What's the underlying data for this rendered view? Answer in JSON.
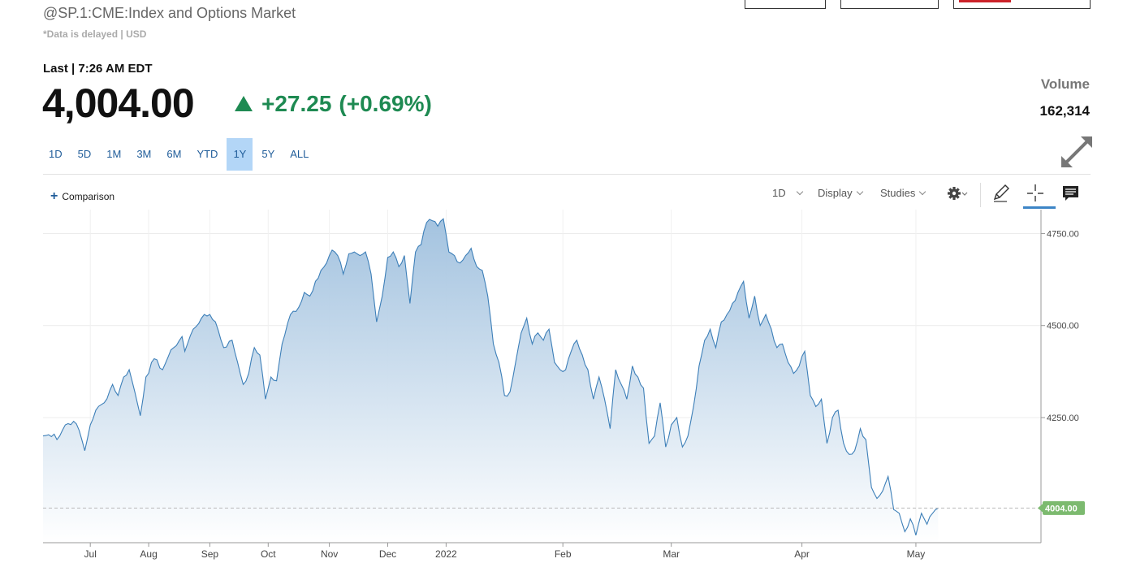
{
  "header": {
    "title": "@SP.1:CME:Index and Options Market",
    "delayed_note": "*Data is delayed | USD",
    "last_label": "Last | 7:26 AM EDT",
    "last_price": "4,004.00",
    "change": "+27.25",
    "change_pct": "(+0.69%)",
    "volume_label": "Volume",
    "volume_value": "162,314"
  },
  "ranges": [
    "1D",
    "5D",
    "1M",
    "3M",
    "6M",
    "YTD",
    "1Y",
    "5Y",
    "ALL"
  ],
  "active_range": "1Y",
  "toolbar": {
    "comparison": "Comparison",
    "interval": "1D",
    "display": "Display",
    "studies": "Studies"
  },
  "colors": {
    "line": "#3d7fb8",
    "area_top": "#9fc0de",
    "area_bottom": "#ffffff",
    "positive": "#1e8a52",
    "price_tag": "#7cba6f",
    "active_range": "#b3d6f7"
  },
  "icons": [
    "expand-icon",
    "settings-gear-icon",
    "pencil-icon",
    "crosshair-icon",
    "comment-icon"
  ],
  "chart_data": {
    "type": "area",
    "y_axis": {
      "ticks": [
        4250,
        4500,
        4750
      ],
      "tick_labels": [
        "4250.00",
        "4500.00",
        "4750.00"
      ],
      "ylim": [
        3910,
        4815
      ],
      "position": "right"
    },
    "x_axis": {
      "ticks": [
        "Jul",
        "Aug",
        "Sep",
        "Oct",
        "Nov",
        "Dec",
        "2022",
        "Feb",
        "Mar",
        "Apr",
        "May"
      ],
      "tick_index": [
        17,
        38,
        60,
        81,
        103,
        124,
        145,
        187,
        226,
        273,
        314
      ],
      "n_points": 360
    },
    "last_value": 4004,
    "last_value_label": "4004.00",
    "grid": true,
    "anchors": [
      [
        0,
        4200
      ],
      [
        4,
        4205
      ],
      [
        5,
        4190
      ],
      [
        8,
        4230
      ],
      [
        11,
        4240
      ],
      [
        13,
        4215
      ],
      [
        15,
        4160
      ],
      [
        17,
        4230
      ],
      [
        19,
        4270
      ],
      [
        22,
        4290
      ],
      [
        25,
        4340
      ],
      [
        27,
        4310
      ],
      [
        29,
        4360
      ],
      [
        31,
        4380
      ],
      [
        33,
        4320
      ],
      [
        35,
        4255
      ],
      [
        37,
        4360
      ],
      [
        40,
        4410
      ],
      [
        43,
        4380
      ],
      [
        45,
        4415
      ],
      [
        47,
        4440
      ],
      [
        50,
        4470
      ],
      [
        51,
        4430
      ],
      [
        54,
        4490
      ],
      [
        57,
        4520
      ],
      [
        60,
        4530
      ],
      [
        62,
        4510
      ],
      [
        65,
        4440
      ],
      [
        68,
        4460
      ],
      [
        70,
        4400
      ],
      [
        72,
        4340
      ],
      [
        74,
        4370
      ],
      [
        76,
        4440
      ],
      [
        78,
        4420
      ],
      [
        80,
        4300
      ],
      [
        82,
        4360
      ],
      [
        84,
        4350
      ],
      [
        86,
        4450
      ],
      [
        89,
        4530
      ],
      [
        92,
        4550
      ],
      [
        94,
        4590
      ],
      [
        96,
        4580
      ],
      [
        98,
        4620
      ],
      [
        100,
        4650
      ],
      [
        102,
        4670
      ],
      [
        104,
        4705
      ],
      [
        106,
        4690
      ],
      [
        108,
        4640
      ],
      [
        110,
        4695
      ],
      [
        112,
        4700
      ],
      [
        114,
        4690
      ],
      [
        116,
        4700
      ],
      [
        118,
        4640
      ],
      [
        120,
        4510
      ],
      [
        122,
        4580
      ],
      [
        124,
        4685
      ],
      [
        126,
        4700
      ],
      [
        128,
        4660
      ],
      [
        130,
        4690
      ],
      [
        132,
        4560
      ],
      [
        134,
        4700
      ],
      [
        136,
        4720
      ],
      [
        138,
        4780
      ],
      [
        140,
        4785
      ],
      [
        142,
        4770
      ],
      [
        144,
        4790
      ],
      [
        146,
        4700
      ],
      [
        148,
        4690
      ],
      [
        150,
        4670
      ],
      [
        152,
        4690
      ],
      [
        154,
        4710
      ],
      [
        156,
        4660
      ],
      [
        158,
        4650
      ],
      [
        160,
        4580
      ],
      [
        162,
        4450
      ],
      [
        164,
        4400
      ],
      [
        166,
        4310
      ],
      [
        168,
        4320
      ],
      [
        170,
        4400
      ],
      [
        172,
        4480
      ],
      [
        174,
        4520
      ],
      [
        176,
        4450
      ],
      [
        178,
        4480
      ],
      [
        180,
        4460
      ],
      [
        182,
        4490
      ],
      [
        184,
        4400
      ],
      [
        186,
        4380
      ],
      [
        188,
        4380
      ],
      [
        190,
        4430
      ],
      [
        192,
        4460
      ],
      [
        194,
        4420
      ],
      [
        196,
        4380
      ],
      [
        198,
        4300
      ],
      [
        200,
        4360
      ],
      [
        202,
        4300
      ],
      [
        204,
        4220
      ],
      [
        206,
        4380
      ],
      [
        208,
        4340
      ],
      [
        210,
        4300
      ],
      [
        212,
        4390
      ],
      [
        214,
        4360
      ],
      [
        216,
        4330
      ],
      [
        218,
        4180
      ],
      [
        220,
        4200
      ],
      [
        222,
        4290
      ],
      [
        224,
        4170
      ],
      [
        226,
        4230
      ],
      [
        228,
        4250
      ],
      [
        230,
        4170
      ],
      [
        232,
        4200
      ],
      [
        234,
        4280
      ],
      [
        236,
        4390
      ],
      [
        238,
        4460
      ],
      [
        240,
        4490
      ],
      [
        242,
        4440
      ],
      [
        244,
        4510
      ],
      [
        246,
        4530
      ],
      [
        248,
        4560
      ],
      [
        250,
        4590
      ],
      [
        252,
        4620
      ],
      [
        254,
        4520
      ],
      [
        256,
        4580
      ],
      [
        258,
        4500
      ],
      [
        260,
        4530
      ],
      [
        262,
        4490
      ],
      [
        264,
        4440
      ],
      [
        266,
        4450
      ],
      [
        268,
        4400
      ],
      [
        270,
        4370
      ],
      [
        272,
        4390
      ],
      [
        274,
        4430
      ],
      [
        276,
        4310
      ],
      [
        278,
        4280
      ],
      [
        280,
        4300
      ],
      [
        282,
        4180
      ],
      [
        284,
        4250
      ],
      [
        286,
        4270
      ],
      [
        288,
        4180
      ],
      [
        290,
        4150
      ],
      [
        292,
        4160
      ],
      [
        294,
        4220
      ],
      [
        296,
        4190
      ],
      [
        298,
        4060
      ],
      [
        300,
        4030
      ],
      [
        302,
        4050
      ],
      [
        304,
        4090
      ],
      [
        306,
        4000
      ],
      [
        308,
        3990
      ],
      [
        310,
        3940
      ],
      [
        312,
        3975
      ],
      [
        314,
        3930
      ],
      [
        316,
        3990
      ],
      [
        318,
        3960
      ],
      [
        320,
        3990
      ],
      [
        322,
        4004
      ]
    ]
  }
}
